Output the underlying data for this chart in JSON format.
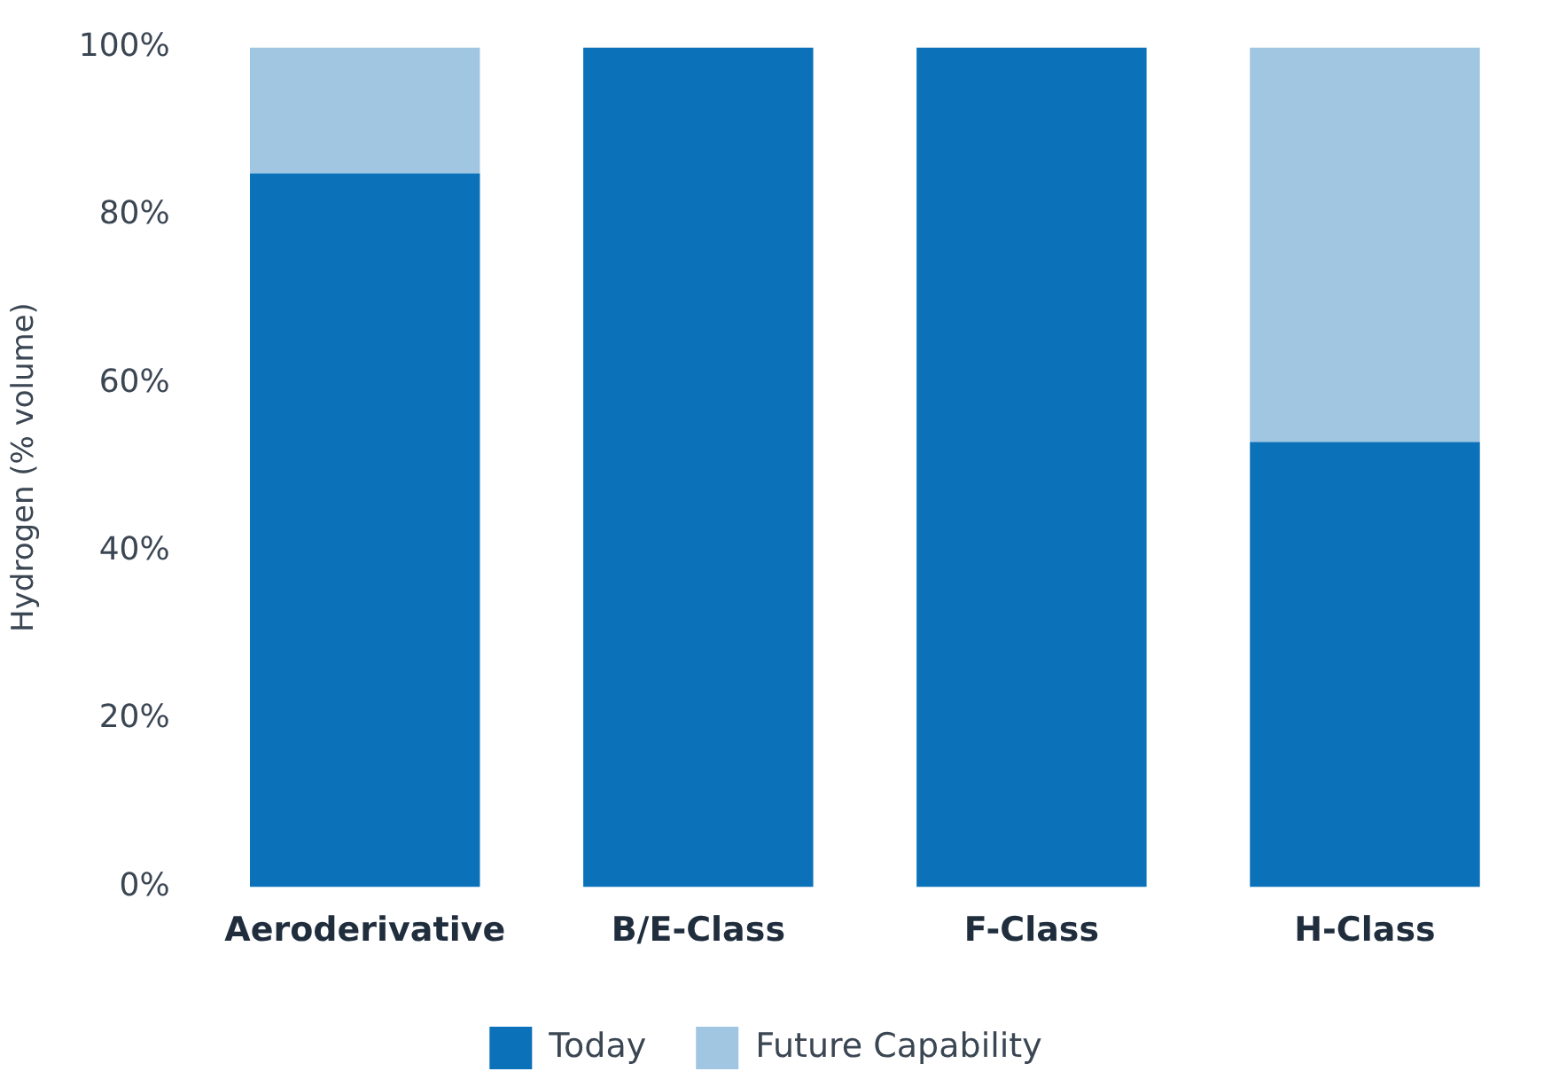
{
  "chart_data": {
    "type": "bar",
    "stacked": true,
    "ylabel": "Hydrogen (% volume)",
    "categories": [
      "Aeroderivative",
      "B/E-Class",
      "F-Class",
      "H-Class"
    ],
    "series": [
      {
        "name": "Today",
        "color": "#0b72b9",
        "values": [
          85,
          100,
          100,
          53
        ]
      },
      {
        "name": "Future Capability",
        "color": "#a0c6e2",
        "values": [
          15,
          0,
          0,
          47
        ]
      }
    ],
    "ylim": [
      0,
      100
    ],
    "yticks": [
      {
        "value": 0,
        "label": "0%"
      },
      {
        "value": 20,
        "label": "20%"
      },
      {
        "value": 40,
        "label": "40%"
      },
      {
        "value": 60,
        "label": "60%"
      },
      {
        "value": 80,
        "label": "80%"
      },
      {
        "value": 100,
        "label": "100%"
      }
    ],
    "grid": false,
    "legend": "bottom"
  }
}
